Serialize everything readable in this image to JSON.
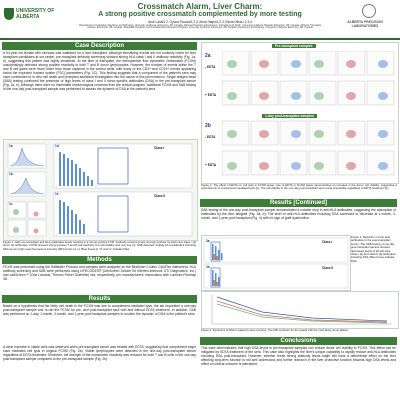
{
  "header": {
    "logo_left": "UNIVERSITY OF ALBERTA",
    "title_line1": "Crossmatch Alarm, Liver Charm:",
    "title_line2": "A strong positive crossmatch complemented by more testing",
    "authors": "Amir Lavaf1,2, Oyuna Tsoozai1,2,3, Anna Halpin1,2,3, Esma Dilsiz1,2,3,4",
    "affiliations": "1Department of Laboratory Medicine and Pathology, University of Alberta, Edmonton, AB, Canada; 2Alberta Precision Laboratories, Transplant Lab North, University of Alberta Hospital, Edmonton, AB, Canada; 3Alberta Transplant Institute, Edmonton, AB, Canada; 4Canadian Donation and Transplantation Research Program, University of Alberta, Edmonton, AB, Canada; Department of Pathology, University of Alberta, Edmonton, AB, Canada",
    "logo_right": "ALBERTA PRECISION LABORATORIES"
  },
  "case_description": {
    "heading": "Case Description",
    "text": "A 54-year-old female with cirrhosis was waitlisted for a liver transplant. Although sensitizing events are not routinely noted for liver transplant candidates at our center, pre-transplant antibody screening showed strong HLA class I and II antibody reactivity (Fig. 1a, b), suggesting this patient was highly sensitized. At the time of transplant, the retrospective flow cytometric crossmatch (FCXM) unsurprisingly detected strong positive reactivity to both T and B donor lymphocytes. However, the number of events within the T and B cell gates were much lower than those captured in the control wells, with many of the CD3+ and CD19+ events appearing below the expected forward scatter (FSC) parameters (Fig. 1C). This finding suggests that a component of the patient's sera may have contributed to in vitro cell death and prompted additional investigation into the cause of this phenomenon. Single antigen bead (SAB) testing confirmed the presence of high levels of class I and II donor-specific antibodies (DSA) in the pre-transplant serum (Fig. 1d, e). Although there were no immediate immunological concerns from the clinical program, additional FCXM and SAB testing of the one-day post-transplant sample was performed to assess the dynamic of DSA in the patient's sera."
  },
  "figure1": {
    "labels": [
      "1a",
      "1b",
      "1c",
      "1d",
      "1e"
    ],
    "panel_titles": [
      "Class I",
      "Class II"
    ],
    "caption": "Figure 1. High pre-transplant anti-HLA antibodies levels resulted in a strong positive FXM. Antibody screening was strongly positive for both HLA class I (a) and II (b) antibodies. FCXM showed strong positive T and B cell reactivity, but cell viability was very low (c). SAB detected multiple HLA antibodies including DSA at very high mean fluorescent intensity (MFI) levels (d, e). Blue boxes in \"d\" and \"e\" indicate DSA."
  },
  "methods": {
    "heading": "Methods",
    "text": "FCXM was performed using the Halifaster Protocol and samples were analyzed on the Beckman Coulter CytoFlex instrument. HLA antibody screening and SAB were performed using LIFECODES® (LifeScreen Deluxe Kit /Werfen-Immucor GTI Diagnostics, Inc.) and LabScreen™ (One Lambda, Thermo Fisher Scientific) kits, respectively, per manufacturers' instructions with Luminex-Flexmap 3D."
  },
  "discussion": {
    "heading": "Results",
    "paragraphs": [
      "Based on a hypothesis that the likely cell death in the FCXM was due to complement-mediated lysis, the lab requested a one-day post-transplant sample and re-ran the FCXM for pre- and post-transplant sera with and without EDTA treatment. In addition, SAB was performed on 1-day, 1-month, 3-month, and 1-year post-transplant samples to monitor the dynamic of DSA in the patient's sera.",
      "A clear increase in viable cells was observed when pre-transplant serum was treated with EDTA, suggesting that complement might have mediated cell lysis in original FCXM (Fig. 2a). Viable lymphocytes were detected in the one-day post-transplant serum regardless of EDTA treatment. Moreover, the strength of the crossmatch reactivity was reduced for both T and B cells in the one-day post-transplant sample compared to the pre-transplant sample (Fig. 2b)."
    ]
  },
  "figure2": {
    "labels": [
      "2a",
      "2b"
    ],
    "group_titles": [
      "Pre-transplant samples",
      "1-day post-transplant samples"
    ],
    "rows": [
      "- EDTA",
      "+ EDTA",
      "- EDTA",
      "+ EDTA"
    ],
    "caption": "Figure 2. The effect of EDTA on cell lysis in FCXM assay. Use of EDTA in FCXM assay demonstrated an increase in the donor cell viability, suggesting a potential role of complement-mediated lysis (a). The cell viability in the one-day post transplant serum was acceptable regardless of EDTA treatment (b)."
  },
  "results_continued": {
    "heading": "Results [Continued]",
    "text": "SAB testing of the one-day post-transplant sample demonstrated a notable drop in anti-HLA antibodies, suggesting the adsorption of antibodies by the liver allograft (Fig. 3a, b). The level of anti-HLA antibodies including DSA continued to decrease at 1-month, 3-month, and 1-year post-transplant (Fig. 4) with no sign of graft dysfunction."
  },
  "figure3": {
    "labels": [
      "3a",
      "3b"
    ],
    "panel_titles": [
      "Class I",
      "Class II"
    ],
    "caption": "Figure 3. Reduction of anti-HLA antibodies in the post-transplant serum. The SAB testing of one-day post-transplant sample showed decreased levels of all anti-HLA class I (a) and class II (b) antibodies including DSA. Blue boxes indicate DSA."
  },
  "figure4": {
    "caption": "Figure 4. Dynamics of DSA in patient's sera overtime. The MFI is shown for the beads with the most likely donor alleles."
  },
  "conclusions": {
    "heading": "Conclusions",
    "text": "This case demonstrates that high DSA levels in pre-transplant samples can reduce donor cell viability in FCXM. This effect can be mitigated by EDTA treatment of the sera. This case also highlights the liver's unique capability to rapidly reduce anti-HLA antibodies including DSA post-transplant. However, whether these strong antibody levels might still have a detrimental effect on the liver affecting long-term function is not well understood and further research in the liver protective function towards high DSA levels and effect on clinical outcome is warranted."
  }
}
